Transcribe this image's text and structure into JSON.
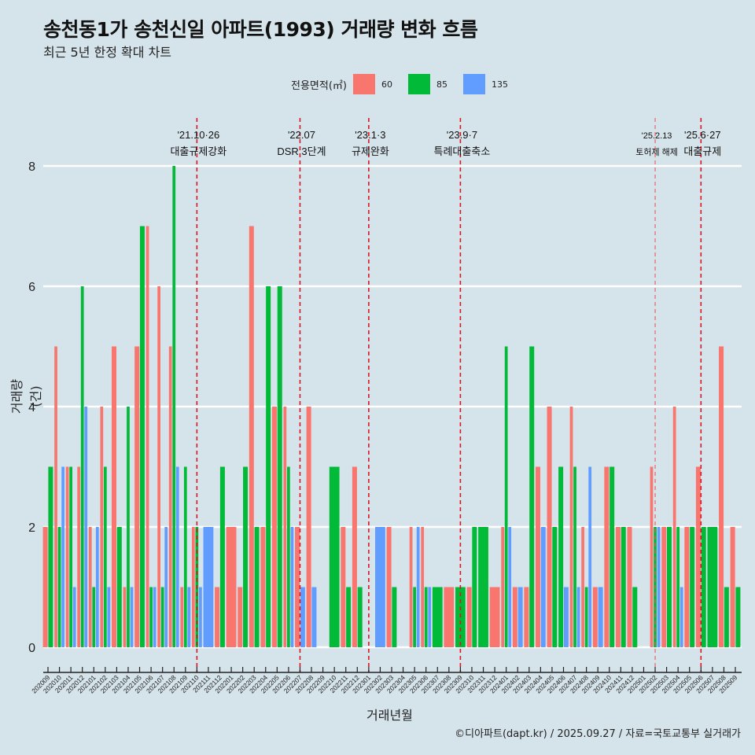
{
  "header": {
    "title": "송천동1가 송천신일 아파트(1993) 거래량 변화 흐름",
    "subtitle": "최근 5년 한정 확대 차트"
  },
  "legend": {
    "title": "전용면적(㎡)",
    "items": [
      {
        "label": "60",
        "color": "#F8766D"
      },
      {
        "label": "85",
        "color": "#00BA38"
      },
      {
        "label": "135",
        "color": "#619CFF"
      }
    ]
  },
  "footer": "©디아파트(dapt.kr) / 2025.09.27 / 자료=국토교통부 실거래가",
  "chart_data": {
    "type": "bar",
    "title": "송천동1가 송천신일 아파트(1993) 거래량 변화 흐름",
    "subtitle": "최근 5년 한정 확대 차트",
    "xlabel": "거래년월",
    "ylabel": "거래량(건)",
    "ylim": [
      0,
      8
    ],
    "yticks": [
      "0",
      "2",
      "4",
      "6",
      "8"
    ],
    "grid": "horizontal",
    "legend_position": "top",
    "categories": [
      "202009",
      "202010",
      "202011",
      "202012",
      "202101",
      "202102",
      "202103",
      "202104",
      "202105",
      "202106",
      "202107",
      "202108",
      "202109",
      "202110",
      "202111",
      "202112",
      "202201",
      "202202",
      "202203",
      "202204",
      "202205",
      "202206",
      "202207",
      "202208",
      "202209",
      "202210",
      "202211",
      "202212",
      "202301",
      "202302",
      "202303",
      "202304",
      "202305",
      "202306",
      "202307",
      "202308",
      "202309",
      "202310",
      "202311",
      "202312",
      "202401",
      "202402",
      "202403",
      "202404",
      "202405",
      "202406",
      "202407",
      "202408",
      "202409",
      "202410",
      "202411",
      "202412",
      "202501",
      "202502",
      "202503",
      "202504",
      "202505",
      "202506",
      "202507",
      "202508",
      "202509"
    ],
    "series": [
      {
        "name": "60",
        "color": "#F8766D",
        "values": [
          2,
          5,
          3,
          3,
          2,
          4,
          5,
          1,
          5,
          7,
          6,
          5,
          1,
          2,
          null,
          1,
          2,
          1,
          7,
          2,
          4,
          4,
          2,
          4,
          null,
          null,
          2,
          3,
          null,
          null,
          2,
          null,
          2,
          2,
          null,
          1,
          null,
          1,
          null,
          1,
          2,
          1,
          1,
          3,
          4,
          null,
          4,
          2,
          1,
          3,
          2,
          2,
          null,
          3,
          2,
          4,
          2,
          3,
          null,
          5,
          2
        ]
      },
      {
        "name": "85",
        "color": "#00BA38",
        "values": [
          3,
          2,
          3,
          6,
          1,
          3,
          2,
          4,
          7,
          1,
          1,
          8,
          3,
          2,
          null,
          3,
          null,
          3,
          2,
          6,
          6,
          3,
          null,
          null,
          null,
          3,
          1,
          1,
          null,
          null,
          1,
          null,
          1,
          1,
          1,
          null,
          1,
          2,
          2,
          null,
          5,
          null,
          5,
          null,
          2,
          3,
          3,
          1,
          null,
          3,
          2,
          1,
          null,
          2,
          2,
          2,
          2,
          2,
          2,
          1,
          1
        ]
      },
      {
        "name": "135",
        "color": "#619CFF",
        "values": [
          null,
          3,
          1,
          4,
          2,
          1,
          null,
          1,
          null,
          1,
          2,
          3,
          1,
          1,
          2,
          null,
          null,
          null,
          null,
          null,
          null,
          2,
          1,
          1,
          null,
          null,
          null,
          null,
          null,
          2,
          null,
          null,
          2,
          1,
          null,
          null,
          null,
          null,
          null,
          null,
          2,
          1,
          null,
          2,
          null,
          1,
          1,
          3,
          1,
          null,
          null,
          null,
          null,
          2,
          null,
          1,
          null,
          null,
          null,
          null,
          null
        ]
      }
    ],
    "annotations": [
      {
        "category": "202110",
        "date": "'21.10·26",
        "label": "대출규제강화",
        "style": "strong"
      },
      {
        "category": "202207",
        "date": "'22.07",
        "label": "DSR 3단계",
        "style": "strong"
      },
      {
        "category": "202301",
        "date": "'23.1·3",
        "label": "규제완화",
        "style": "strong"
      },
      {
        "category": "202309",
        "date": "'23.9·7",
        "label": "특례대출축소",
        "style": "strong"
      },
      {
        "category": "202502",
        "date": "'25.2.13",
        "label": "토허제 해제",
        "style": "light"
      },
      {
        "category": "202506",
        "date": "'25.6·27",
        "label": "대출규제",
        "style": "strong"
      }
    ]
  }
}
